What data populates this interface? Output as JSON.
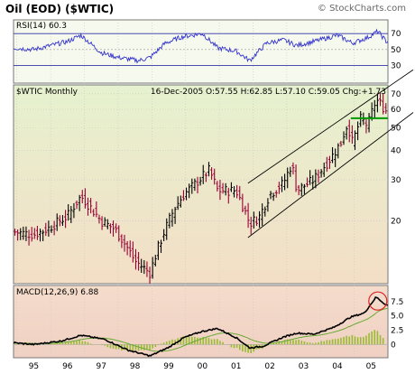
{
  "header": {
    "title": "Oil (EOD) ($WTIC)",
    "credit": "© StockCharts.com"
  },
  "colors": {
    "rsi_line": "#3333cc",
    "price_up": "#000000",
    "price_down": "#990033",
    "channel": "#000000",
    "support": "#009900",
    "macd": "#000000",
    "signal": "#66aa33",
    "histogram": "#99bb33",
    "highlight_circle": "#dd2222"
  },
  "rsi_panel": {
    "label": "RSI(14) 60.3",
    "ticks": [
      "70",
      "50",
      "30"
    ]
  },
  "price_panel": {
    "label": "$WTIC Monthly",
    "ohlc_text": "16-Dec-2005 O:57.55 H:62.85 L:57.10 C:59.05 Chg:+1.73",
    "ticks": [
      "70",
      "60",
      "50",
      "40",
      "30",
      "20"
    ]
  },
  "macd_panel": {
    "label": "MACD(12,26,9) 6.88",
    "ticks": [
      "7.5",
      "5.0",
      "2.5",
      "0"
    ]
  },
  "x_axis": {
    "labels": [
      "95",
      "96",
      "97",
      "98",
      "99",
      "00",
      "01",
      "02",
      "03",
      "04",
      "05"
    ]
  },
  "chart_data": {
    "type": "ohlc",
    "symbol": "$WTIC",
    "period": "Monthly",
    "y_scale": "log",
    "price_range": [
      11,
      75
    ],
    "x_range_years": [
      1994.9,
      2006.0
    ],
    "anchors": [
      [
        1994.9,
        18.0
      ],
      [
        1995.5,
        17.5
      ],
      [
        1995.9,
        18.5
      ],
      [
        1996.5,
        21.0
      ],
      [
        1996.9,
        25.5
      ],
      [
        1997.5,
        20.0
      ],
      [
        1997.9,
        18.5
      ],
      [
        1998.5,
        13.5
      ],
      [
        1998.95,
        12.0
      ],
      [
        1999.3,
        17.0
      ],
      [
        1999.7,
        23.0
      ],
      [
        1999.95,
        26.0
      ],
      [
        2000.3,
        29.0
      ],
      [
        2000.7,
        33.0
      ],
      [
        2000.95,
        27.0
      ],
      [
        2001.5,
        27.0
      ],
      [
        2001.9,
        19.5
      ],
      [
        2002.2,
        21.0
      ],
      [
        2002.5,
        26.0
      ],
      [
        2002.9,
        29.0
      ],
      [
        2003.15,
        35.0
      ],
      [
        2003.3,
        27.0
      ],
      [
        2003.8,
        30.0
      ],
      [
        2003.95,
        32.0
      ],
      [
        2004.3,
        37.0
      ],
      [
        2004.6,
        43.0
      ],
      [
        2004.8,
        52.0
      ],
      [
        2004.95,
        43.0
      ],
      [
        2005.2,
        55.0
      ],
      [
        2005.4,
        51.0
      ],
      [
        2005.65,
        66.0
      ],
      [
        2005.8,
        63.0
      ],
      [
        2005.95,
        59.05
      ]
    ],
    "rsi_range": [
      10,
      85
    ],
    "rsi_anchors": [
      [
        1994.9,
        52
      ],
      [
        1995.5,
        50
      ],
      [
        1996.5,
        60
      ],
      [
        1996.9,
        68
      ],
      [
        1997.5,
        46
      ],
      [
        1998.0,
        40
      ],
      [
        1998.6,
        36
      ],
      [
        1998.95,
        40
      ],
      [
        1999.4,
        58
      ],
      [
        1999.9,
        66
      ],
      [
        2000.5,
        70
      ],
      [
        2000.95,
        52
      ],
      [
        2001.5,
        48
      ],
      [
        2001.9,
        36
      ],
      [
        2002.4,
        58
      ],
      [
        2002.9,
        62
      ],
      [
        2003.3,
        55
      ],
      [
        2003.8,
        60
      ],
      [
        2004.5,
        68
      ],
      [
        2004.95,
        58
      ],
      [
        2005.4,
        65
      ],
      [
        2005.7,
        73
      ],
      [
        2005.95,
        60.3
      ]
    ],
    "macd_range": [
      -2,
      10
    ],
    "macd_anchors": [
      [
        1994.9,
        0.3
      ],
      [
        1995.5,
        0.0
      ],
      [
        1996.3,
        0.6
      ],
      [
        1996.9,
        1.6
      ],
      [
        1997.6,
        0.9
      ],
      [
        1998.3,
        -1.0
      ],
      [
        1998.95,
        -2.0
      ],
      [
        1999.5,
        -0.5
      ],
      [
        1999.95,
        1.2
      ],
      [
        2000.5,
        2.3
      ],
      [
        2000.95,
        2.8
      ],
      [
        2001.5,
        1.2
      ],
      [
        2001.9,
        -0.6
      ],
      [
        2002.3,
        -0.3
      ],
      [
        2002.9,
        1.3
      ],
      [
        2003.3,
        2.0
      ],
      [
        2003.8,
        1.8
      ],
      [
        2004.4,
        3.0
      ],
      [
        2004.9,
        4.8
      ],
      [
        2005.3,
        5.5
      ],
      [
        2005.65,
        8.3
      ],
      [
        2005.95,
        6.88
      ]
    ],
    "trend_channel": {
      "lower": [
        [
          2001.85,
          17.0
        ],
        [
          2006.3,
          52.0
        ]
      ],
      "upper": [
        [
          2001.85,
          29.0
        ],
        [
          2006.3,
          80.0
        ]
      ]
    },
    "support_line": {
      "price": 55.0,
      "from": 2004.9,
      "to": 2006.1
    }
  }
}
